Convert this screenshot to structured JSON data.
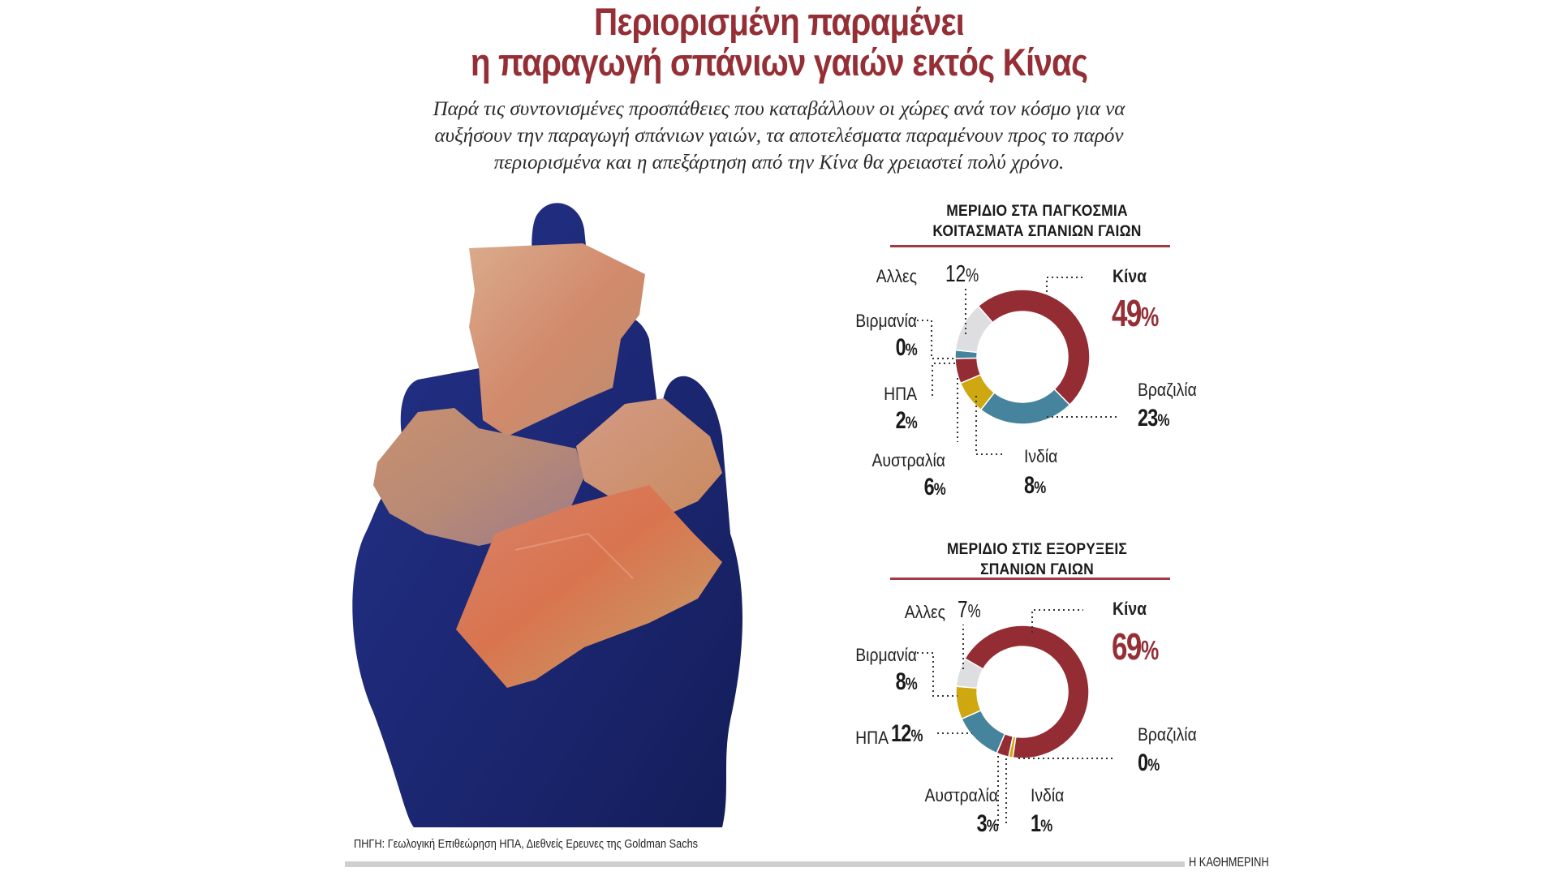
{
  "header": {
    "title_line1": "Περιορισμένη παραμένει",
    "title_line2": "η παραγωγή σπάνιων γαιών εκτός Κίνας",
    "subtitle_lines": [
      "Παρά τις συντονισμένες προσπάθειες που καταβάλλουν οι χώρες ανά τον κόσμο για να",
      "αυξήσουν την παραγωγή σπάνιων γαιών, τα αποτελέσματα παραμένουν προς το παρόν",
      "περιορισμένα και η απεξάρτηση από την Κίνα θα χρειαστεί πολύ χρόνο."
    ]
  },
  "colors": {
    "title": "#952F36",
    "rule": "#A33A40",
    "china": "#942D33",
    "teal": "#45849C",
    "yellow": "#CFA711",
    "grey": "#DEDEE0",
    "glove": "#1c2a78",
    "footer_bar": "#cfcfcf"
  },
  "photo": {
    "description": "glove-holding-rare-earth-rocks"
  },
  "chart1": {
    "heading_line1": "ΜΕΡΙΔΙΟ ΣΤΑ ΠΑΓΚΟΣΜΙΑ",
    "heading_line2": "ΚΟΙΤΑΣΜΑΤΑ ΣΠΑΝΙΩΝ ΓΑΙΩΝ",
    "labels": {
      "china": "Κίνα",
      "china_val": "49",
      "brazil": "Βραζιλία",
      "brazil_val": "23",
      "india": "Ινδία",
      "india_val": "8",
      "australia": "Αυστραλία",
      "australia_val": "6",
      "usa": "ΗΠΑ",
      "usa_val": "2",
      "burma": "Βιρμανία",
      "burma_val": "0",
      "others": "Αλλες",
      "others_val": "12"
    }
  },
  "chart2": {
    "heading_line1": "ΜΕΡΙΔΙΟ ΣΤΙΣ ΕΞΟΡΥΞΕΙΣ",
    "heading_line2": "ΣΠΑΝΙΩΝ ΓΑΙΩΝ",
    "labels": {
      "china": "Κίνα",
      "china_val": "69",
      "brazil": "Βραζιλία",
      "brazil_val": "0",
      "india": "Ινδία",
      "india_val": "1",
      "australia": "Αυστραλία",
      "australia_val": "3",
      "usa": "ΗΠΑ",
      "usa_val": "12",
      "burma": "Βιρμανία",
      "burma_val": "8",
      "others": "Αλλες",
      "others_val": "7"
    }
  },
  "pct_sign": "%",
  "footer": {
    "source": "ΠΗΓΗ: Γεωλογική Επιθεώρηση ΗΠΑ,  Διεθνείς Ερευνες της Goldman Sachs",
    "brand": "Η ΚΑΘΗΜΕΡΙΝΗ"
  },
  "chart_data": [
    {
      "type": "pie",
      "title": "ΜΕΡΙΔΙΟ ΣΤΑ ΠΑΓΚΟΣΜΙΑ ΚΟΙΤΑΣΜΑΤΑ ΣΠΑΝΙΩΝ ΓΑΙΩΝ",
      "donut": true,
      "unit": "%",
      "categories": [
        "Κίνα",
        "Βραζιλία",
        "Ινδία",
        "Αυστραλία",
        "ΗΠΑ",
        "Βιρμανία",
        "Αλλες"
      ],
      "values": [
        49,
        23,
        8,
        6,
        2,
        0,
        12
      ],
      "colors": [
        "#942D33",
        "#45849C",
        "#CFA711",
        "#942D33",
        "#45849C",
        "#CFA711",
        "#DEDEE0"
      ],
      "start_angle_deg": -41,
      "direction": "clockwise",
      "legend": "direct labels with dotted leader lines"
    },
    {
      "type": "pie",
      "title": "ΜΕΡΙΔΙΟ ΣΤΙΣ ΕΞΟΡΥΞΕΙΣ ΣΠΑΝΙΩΝ ΓΑΙΩΝ",
      "donut": true,
      "unit": "%",
      "categories": [
        "Κίνα",
        "Βραζιλία",
        "Ινδία",
        "Αυστραλία",
        "ΗΠΑ",
        "Βιρμανία",
        "Αλλες"
      ],
      "values": [
        69,
        0,
        1,
        3,
        12,
        8,
        7
      ],
      "colors": [
        "#942D33",
        "#45849C",
        "#CFA711",
        "#942D33",
        "#45849C",
        "#CFA711",
        "#DEDEE0"
      ],
      "start_angle_deg": -60,
      "direction": "clockwise",
      "legend": "direct labels with dotted leader lines"
    }
  ]
}
